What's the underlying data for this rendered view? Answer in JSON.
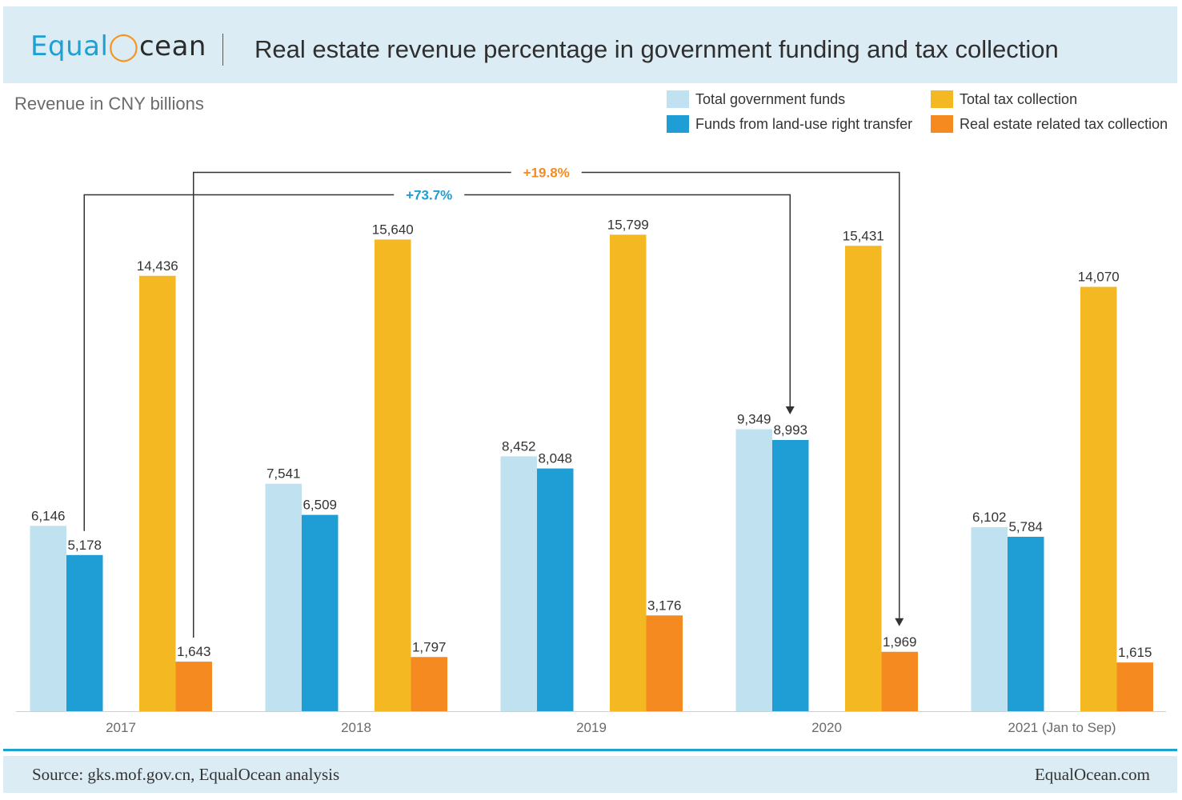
{
  "header": {
    "logo_prefix": "Equal",
    "logo_suffix": "cean",
    "title": "Real estate revenue percentage in government funding and tax collection"
  },
  "subtitle": "Revenue in CNY billions",
  "footer": {
    "source": "Source: gks.mof.gov.cn, EqualOcean analysis",
    "website": "EqualOcean.com"
  },
  "colors": {
    "total_government_funds": "#bfe1f0",
    "land_use_funds": "#1e9ed4",
    "total_tax": "#f4b822",
    "real_estate_tax": "#f58b20",
    "arrow_blue_label": "#1e9ed4",
    "arrow_orange_label": "#f58b20"
  },
  "chart_data": {
    "type": "bar",
    "title": "Real estate revenue percentage in government funding and tax collection",
    "ylabel": "Revenue in CNY billions",
    "xlabel": "",
    "ylim": [
      0,
      17000
    ],
    "grid": false,
    "legend_position": "top-right",
    "categories": [
      "2017",
      "2018",
      "2019",
      "2020",
      "2021 (Jan to Sep)"
    ],
    "series": [
      {
        "name": "Total government funds",
        "values": [
          6146,
          7541,
          8452,
          9349,
          6102
        ],
        "labels": [
          "6,146",
          "7,541",
          "8,452",
          "9,349",
          "6,102"
        ]
      },
      {
        "name": "Funds from land-use right transfer",
        "values": [
          5178,
          6509,
          8048,
          8993,
          5784
        ],
        "labels": [
          "5,178",
          "6,509",
          "8,048",
          "8,993",
          "5,784"
        ]
      },
      {
        "name": "Total tax collection",
        "values": [
          14436,
          15640,
          15799,
          15431,
          14070
        ],
        "labels": [
          "14,436",
          "15,640",
          "15,799",
          "15,431",
          "14,070"
        ]
      },
      {
        "name": "Real estate related tax collection",
        "values": [
          1643,
          1797,
          3176,
          1969,
          1615
        ],
        "labels": [
          "1,643",
          "1,797",
          "3,176",
          "1,969",
          "1,615"
        ]
      }
    ],
    "annotations": [
      {
        "label": "+73.7%",
        "series": "Funds from land-use right transfer",
        "from": "2017",
        "to": "2020"
      },
      {
        "label": "+19.8%",
        "series": "Real estate related tax collection",
        "from": "2017",
        "to": "2020"
      }
    ]
  }
}
